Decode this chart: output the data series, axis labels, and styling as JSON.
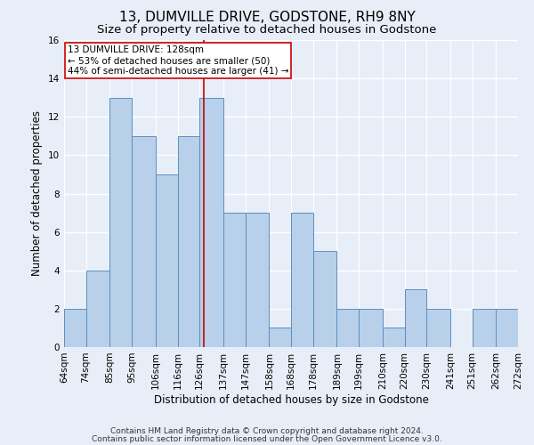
{
  "title": "13, DUMVILLE DRIVE, GODSTONE, RH9 8NY",
  "subtitle": "Size of property relative to detached houses in Godstone",
  "xlabel": "Distribution of detached houses by size in Godstone",
  "ylabel": "Number of detached properties",
  "footnote1": "Contains HM Land Registry data © Crown copyright and database right 2024.",
  "footnote2": "Contains public sector information licensed under the Open Government Licence v3.0.",
  "annotation_line1": "13 DUMVILLE DRIVE: 128sqm",
  "annotation_line2": "← 53% of detached houses are smaller (50)",
  "annotation_line3": "44% of semi-detached houses are larger (41) →",
  "bar_left_edges": [
    64,
    74,
    85,
    95,
    106,
    116,
    126,
    137,
    147,
    158,
    168,
    178,
    189,
    199,
    210,
    220,
    230,
    241,
    251,
    262
  ],
  "bar_widths": [
    10,
    11,
    10,
    11,
    10,
    10,
    11,
    10,
    11,
    10,
    10,
    11,
    10,
    11,
    10,
    10,
    11,
    10,
    11,
    10
  ],
  "bar_heights": [
    2,
    4,
    13,
    11,
    9,
    11,
    13,
    7,
    7,
    1,
    7,
    5,
    2,
    2,
    1,
    3,
    2,
    0,
    2,
    2
  ],
  "bar_color": "#b8d0ea",
  "bar_edge_color": "#5a8fc0",
  "ref_line_color": "#cc0000",
  "ref_line_x": 128,
  "annotation_box_color": "#cc0000",
  "ylim": [
    0,
    16
  ],
  "yticks": [
    0,
    2,
    4,
    6,
    8,
    10,
    12,
    14,
    16
  ],
  "tick_labels": [
    "64sqm",
    "74sqm",
    "85sqm",
    "95sqm",
    "106sqm",
    "116sqm",
    "126sqm",
    "137sqm",
    "147sqm",
    "158sqm",
    "168sqm",
    "178sqm",
    "189sqm",
    "199sqm",
    "210sqm",
    "220sqm",
    "230sqm",
    "241sqm",
    "251sqm",
    "262sqm",
    "272sqm"
  ],
  "bg_color": "#e8eef8",
  "plot_bg_color": "#e8eef8",
  "grid_color": "#ffffff",
  "title_fontsize": 11,
  "subtitle_fontsize": 9.5,
  "axis_label_fontsize": 8.5,
  "tick_fontsize": 7.5,
  "annotation_fontsize": 7.5,
  "footnote_fontsize": 6.5
}
